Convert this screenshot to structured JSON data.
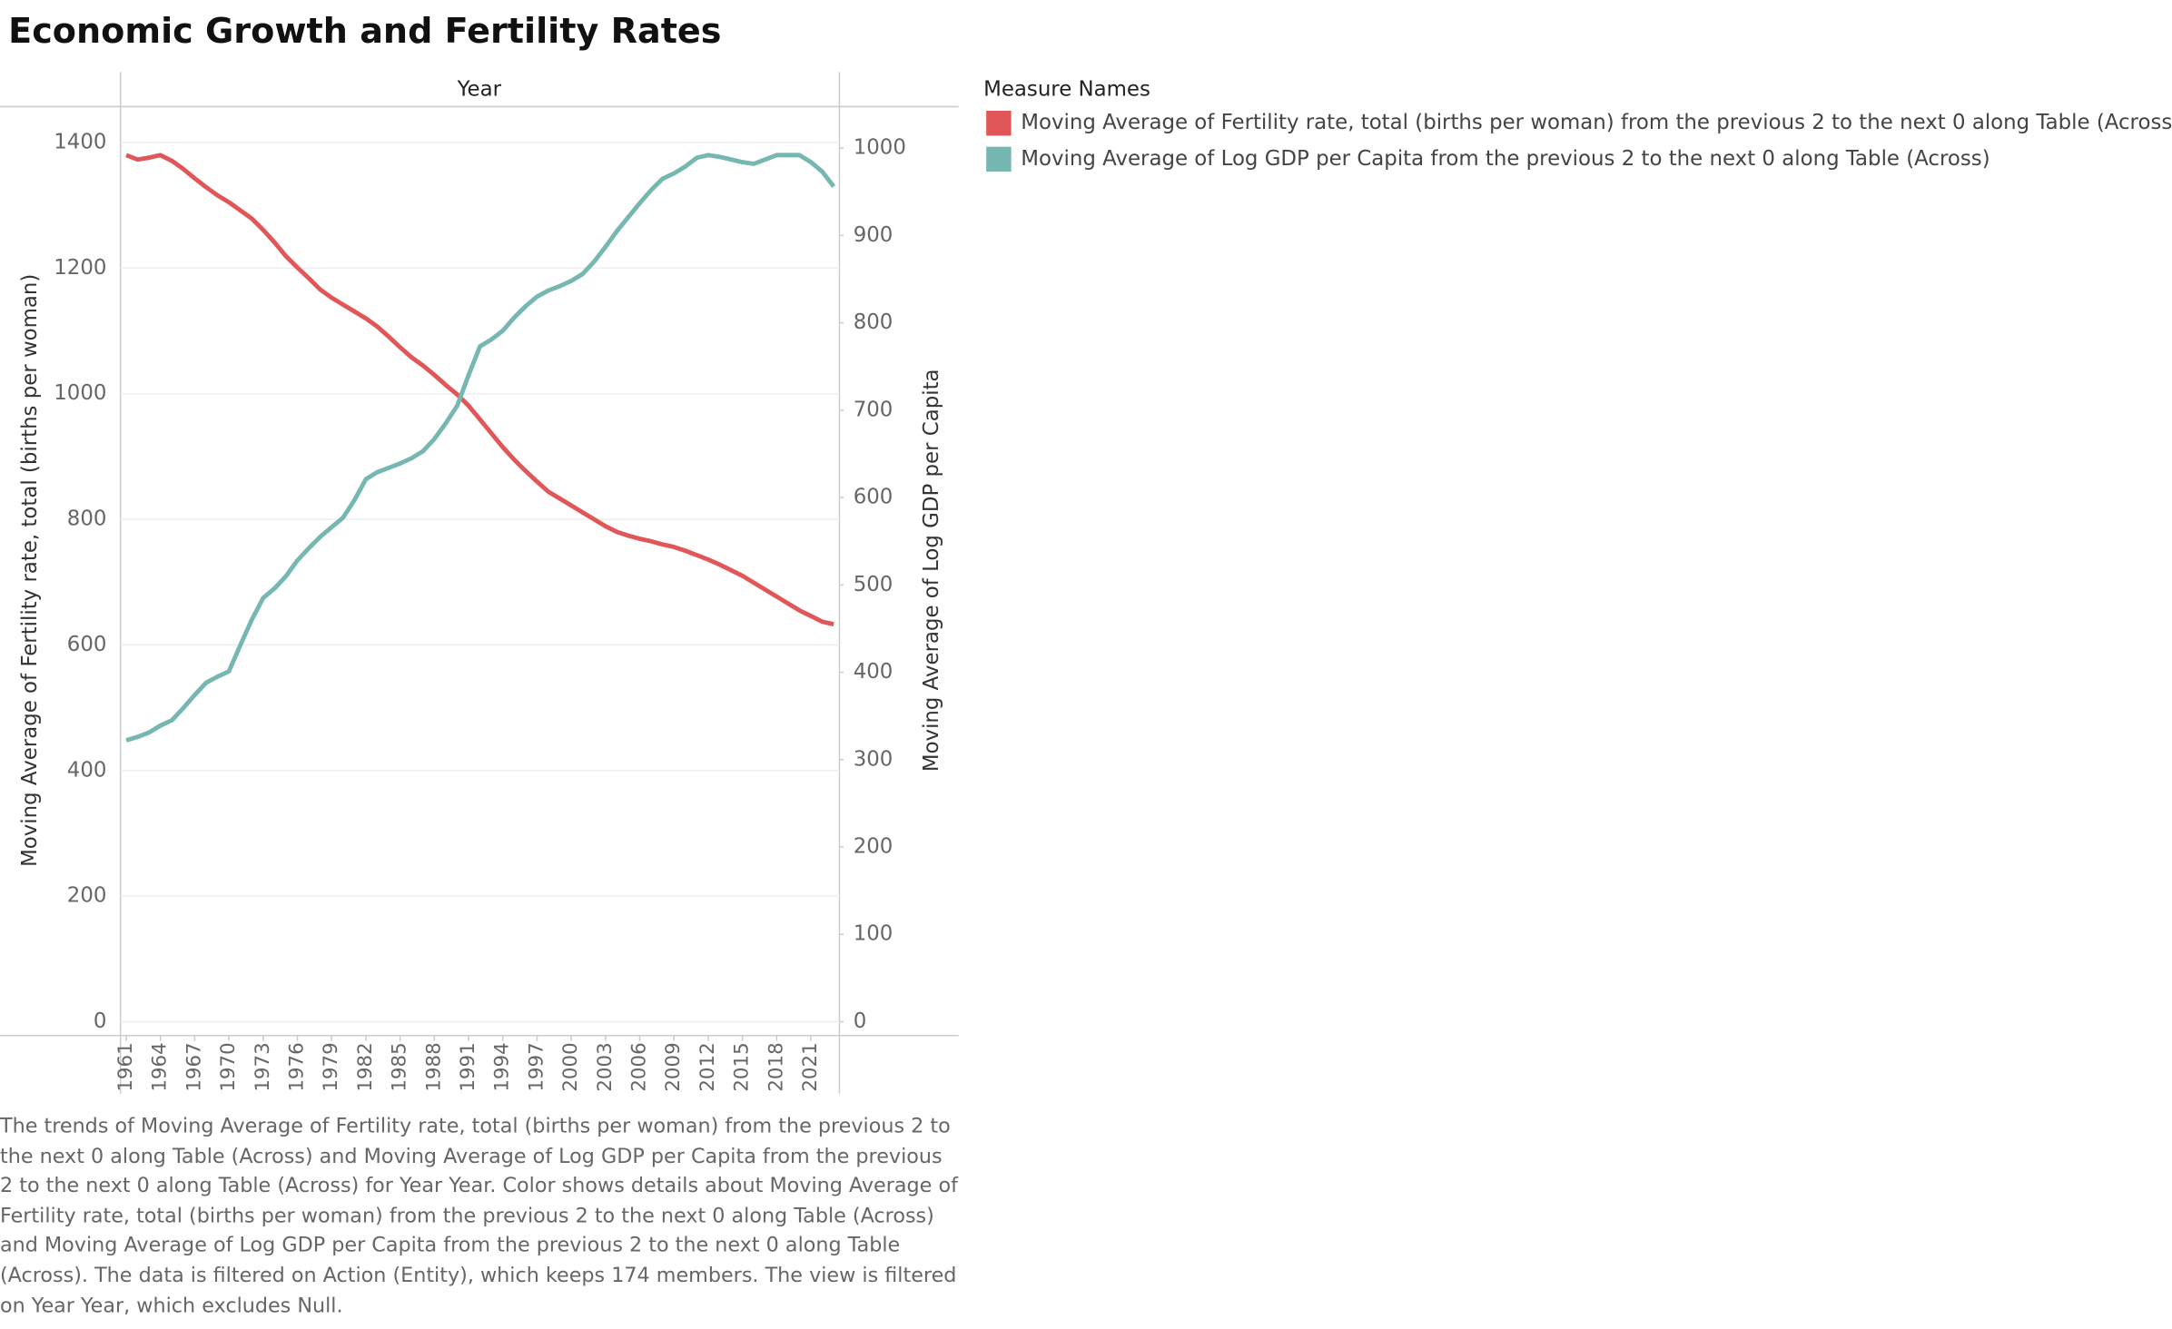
{
  "chart_data": {
    "type": "line",
    "title": "Economic Growth and Fertility Rates",
    "x_label": "Year",
    "y_label": "Moving Average of Fertility rate, total (births per woman)",
    "y2_label": "Moving Average of Log GDP per Capita",
    "legend_title": "Measure Names",
    "caption": "The trends of Moving Average of Fertility rate, total (births per woman) from the previous 2 to the next 0 along Table (Across) and Moving Average of Log GDP per Capita from the previous 2 to the next 0 along Table (Across) for Year Year.  Color shows details about Moving Average of Fertility rate, total (births per woman) from the previous 2 to the next 0 along Table (Across) and Moving Average of Log GDP per Capita from the previous 2 to the next 0 along Table (Across). The data is filtered on Action (Entity), which keeps 174 members. The view is filtered on Year Year, which excludes Null.",
    "x": [
      1961,
      1962,
      1963,
      1964,
      1965,
      1966,
      1967,
      1968,
      1969,
      1970,
      1971,
      1972,
      1973,
      1974,
      1975,
      1976,
      1977,
      1978,
      1979,
      1980,
      1981,
      1982,
      1983,
      1984,
      1985,
      1986,
      1987,
      1988,
      1989,
      1990,
      1991,
      1992,
      1993,
      1994,
      1995,
      1996,
      1997,
      1998,
      1999,
      2000,
      2001,
      2002,
      2003,
      2004,
      2005,
      2006,
      2007,
      2008,
      2009,
      2010,
      2011,
      2012,
      2013,
      2014,
      2015,
      2016,
      2017,
      2018,
      2019,
      2020,
      2021,
      2022,
      2023
    ],
    "xlim": [
      1960.5,
      2023.5
    ],
    "xticks": [
      1961,
      1964,
      1967,
      1970,
      1973,
      1976,
      1979,
      1982,
      1985,
      1988,
      1991,
      1994,
      1997,
      2000,
      2003,
      2006,
      2009,
      2012,
      2015,
      2018,
      2021
    ],
    "ylim": [
      0,
      1400
    ],
    "yticks": [
      0,
      200,
      400,
      600,
      800,
      1000,
      1200,
      1400
    ],
    "y2lim": [
      0,
      1000
    ],
    "y2ticks": [
      0,
      100,
      200,
      300,
      400,
      500,
      600,
      700,
      800,
      900,
      1000
    ],
    "grid": true,
    "legend": "right",
    "series": [
      {
        "name": "Moving Average of Fertility rate, total (births per woman) from the previous 2 to the next 0 along Table (Across)",
        "color": "#e15759",
        "values": [
          1380,
          1373,
          1376,
          1380,
          1371,
          1358,
          1343,
          1329,
          1316,
          1305,
          1292,
          1279,
          1261,
          1241,
          1219,
          1201,
          1184,
          1166,
          1153,
          1142,
          1131,
          1120,
          1107,
          1091,
          1074,
          1058,
          1045,
          1030,
          1014,
          999,
          981,
          959,
          937,
          915,
          895,
          877,
          860,
          844,
          833,
          822,
          811,
          800,
          789,
          780,
          774,
          769,
          765,
          760,
          756,
          750,
          743,
          736,
          728,
          719,
          710,
          699,
          688,
          677,
          666,
          655,
          646,
          637,
          633
        ]
      },
      {
        "name": "Moving Average of Log GDP per Capita from the previous 2 to the next 0 along Table (Across)",
        "color": "#76b7b2",
        "axis": "y2",
        "values": [
          322,
          326,
          331,
          339,
          345,
          359,
          374,
          388,
          395,
          401,
          431,
          460,
          485,
          496,
          510,
          528,
          542,
          555,
          566,
          577,
          597,
          621,
          629,
          634,
          639,
          645,
          653,
          667,
          685,
          705,
          740,
          773,
          781,
          791,
          806,
          819,
          830,
          837,
          842,
          848,
          856,
          870,
          887,
          905,
          921,
          937,
          952,
          965,
          971,
          979,
          989,
          992,
          990,
          987,
          984,
          982,
          987,
          992,
          992,
          992,
          984,
          973,
          956
        ]
      }
    ]
  }
}
